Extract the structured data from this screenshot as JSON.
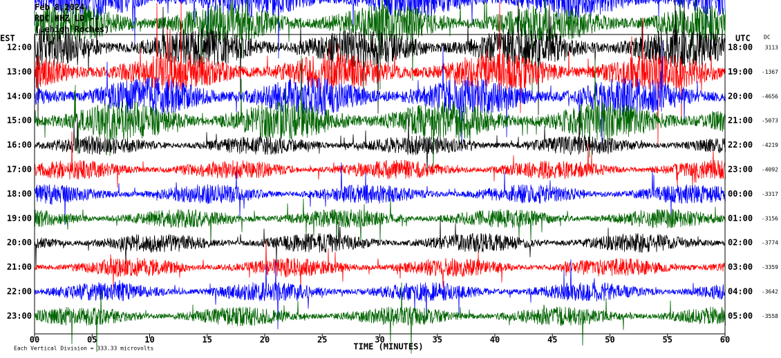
{
  "chart_data": {
    "type": "helicorder",
    "title_lines": [
      "Feb 8,2024",
      "RDC HHZ LD --",
      "(Lehigh Roches)"
    ],
    "left_axis_label": "EST",
    "right_axis_label": "UTC",
    "dc_label": "DC",
    "rows_est": [
      "12:00",
      "13:00",
      "14:00",
      "15:00",
      "16:00",
      "17:00",
      "18:00",
      "19:00",
      "20:00",
      "21:00",
      "22:00",
      "23:00"
    ],
    "rows_utc": [
      "18:00",
      "19:00",
      "20:00",
      "21:00",
      "22:00",
      "23:00",
      "00:00",
      "01:00",
      "02:00",
      "03:00",
      "04:00",
      "05:00"
    ],
    "dc_offsets": [
      3113,
      -1367,
      -4656,
      -5073,
      -4219,
      -4092,
      -3317,
      -3156,
      -3774,
      -3359,
      -3642,
      -3558
    ],
    "trace_colors": [
      "#000000",
      "#ff0000",
      "#0000ff",
      "#006400"
    ],
    "x_label": "TIME (MINUTES)",
    "xlim": [
      0,
      60
    ],
    "xticks": [
      {
        "value": 0,
        "label": "00"
      },
      {
        "value": 5,
        "label": "05"
      },
      {
        "value": 10,
        "label": "10"
      },
      {
        "value": 15,
        "label": "15"
      },
      {
        "value": 20,
        "label": "20"
      },
      {
        "value": 25,
        "label": "25"
      },
      {
        "value": 30,
        "label": "30"
      },
      {
        "value": 35,
        "label": "35"
      },
      {
        "value": 40,
        "label": "40"
      },
      {
        "value": 45,
        "label": "45"
      },
      {
        "value": 50,
        "label": "50"
      },
      {
        "value": 55,
        "label": "55"
      },
      {
        "value": 60,
        "label": "60"
      }
    ],
    "footer": "Each Vertical Division = 333.33 microvolts"
  }
}
